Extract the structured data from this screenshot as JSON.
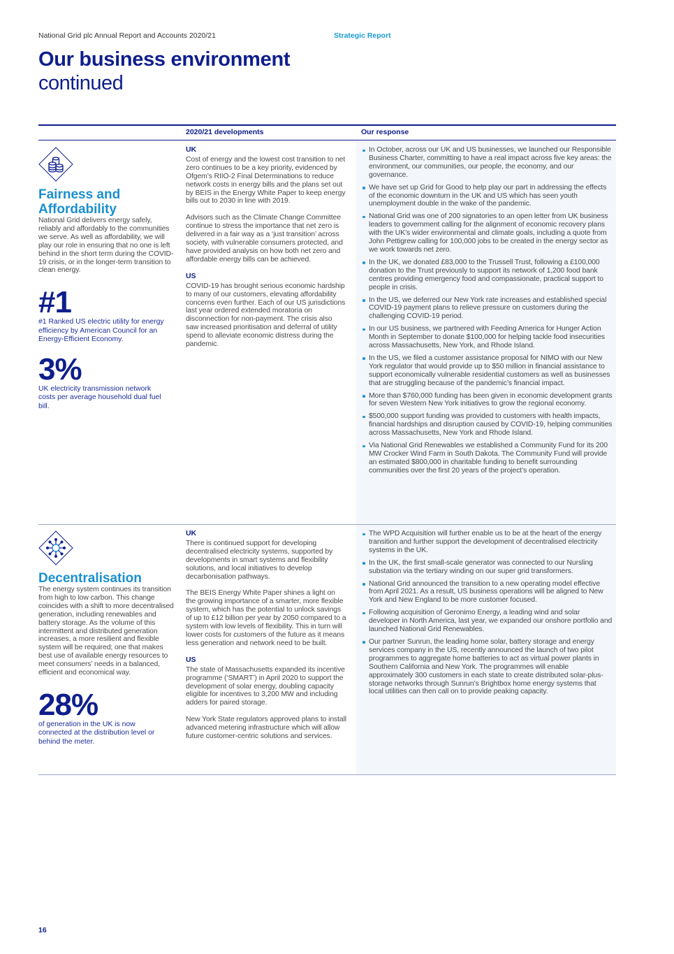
{
  "header": {
    "running_title": "National Grid plc Annual Report and Accounts 2020/21",
    "section": "Strategic Report",
    "title": "Our business environment",
    "subtitle": "continued"
  },
  "table": {
    "col_developments": "2020/21 developments",
    "col_response": "Our response",
    "rows": [
      {
        "icon": "coins-stack-icon",
        "theme": "Fairness and Affordability",
        "description": "National Grid delivers energy safely, reliably and affordably to the communities we serve. As well as affordability, we will play our role in ensuring that no one is left behind in the short term during the COVID-19 crisis, or in the longer-term transition to clean energy.",
        "stats": [
          {
            "value": "#1",
            "caption": "#1 Ranked US electric utility for energy efficiency by American Council for an Energy-Efficient Economy."
          },
          {
            "value": "3%",
            "caption": "UK electricity transmission network costs per average household dual fuel bill."
          }
        ],
        "uk_label": "UK",
        "uk": [
          "Cost of energy and the lowest cost transition to net zero continues to be a key priority, evidenced by Ofgem’s RIIO-2 Final Determinations to reduce network costs in energy bills and the plans set out by BEIS in the Energy White Paper to keep energy bills out to 2030 in line with 2019.",
          "Advisors such as the Climate Change Committee continue to stress the importance that net zero is delivered in a fair way as a ‘just transition’ across society, with vulnerable consumers protected, and have provided analysis on how both net zero and affordable energy bills can be achieved."
        ],
        "us_label": "US",
        "us": [
          "COVID-19 has brought serious economic hardship to many of our customers, elevating affordability concerns even further. Each of our US jurisdictions last year ordered extended moratoria on disconnection for non-payment. The crisis also saw increased prioritisation and deferral of utility spend to alleviate economic distress during the pandemic."
        ],
        "response": [
          "In October, across our UK and US businesses, we launched our Responsible Business Charter, committing to have a real impact across five key areas: the environment, our communities, our people, the economy, and our governance.",
          "We have set up Grid for Good to help play our part in addressing the effects of the economic downturn in the UK and US which has seen youth unemployment double in the wake of the pandemic.",
          "National Grid was one of 200 signatories to an open letter from UK business leaders to government calling for the alignment of economic recovery plans with the UK’s wider environmental and climate goals, including a quote from John Pettigrew calling for 100,000 jobs to be created in the energy sector as we work towards net zero.",
          "In the UK, we donated £83,000 to the Trussell Trust, following a £100,000 donation to the Trust previously to support its network of 1,200 food bank centres providing emergency food and compassionate, practical support to people in crisis.",
          "In the US, we deferred our New York rate increases and established special COVID-19 payment plans to relieve pressure on customers during the challenging COVID-19 period.",
          "In our US business, we partnered with Feeding America for Hunger Action Month in September to donate $100,000 for helping tackle food insecurities across Massachusetts, New York, and Rhode Island.",
          "In the US, we filed a customer assistance proposal for NIMO with our New York regulator that would provide up to $50 million in financial assistance to support economically vulnerable residential customers as well as businesses that are struggling because of the pandemic’s financial impact.",
          "More than $760,000 funding has been given in economic development grants for seven Western New York initiatives to grow the regional economy.",
          "$500,000 support funding was provided to customers with health impacts, financial hardships and disruption caused by COVID-19, helping communities across Massachusetts, New York and Rhode Island.",
          "Via National Grid Renewables we established a Community Fund for its 200 MW Crocker Wind Farm in South Dakota. The Community Fund will provide an estimated $800,000 in charitable funding to benefit surrounding communities over the first 20 years of the project’s operation."
        ]
      },
      {
        "icon": "network-nodes-icon",
        "theme": "Decentralisation",
        "description": "The energy system continues its transition from high to low carbon. This change coincides with a shift to more decentralised generation, including renewables and battery storage. As the volume of this intermittent and distributed generation increases, a more resilient and flexible system will be required; one that makes best use of available energy resources to meet consumers’ needs in a balanced, efficient and economical way.",
        "stats": [
          {
            "value": "28%",
            "caption": "of generation in the UK is now connected at the distribution level or behind the meter."
          }
        ],
        "uk_label": "UK",
        "uk": [
          "There is continued support for developing decentralised electricity systems, supported by developments in smart systems and flexibility solutions, and local initiatives to develop decarbonisation pathways.",
          "The BEIS Energy White Paper shines a light on the growing importance of a smarter, more flexible system, which has the potential to unlock savings of up to £12 billion per year by 2050 compared to a system with low levels of flexibility. This in turn will lower costs for customers of the future as it means less generation and network need to be built."
        ],
        "us_label": "US",
        "us": [
          "The state of Massachusetts expanded its incentive programme (‘SMART’) in April 2020 to support the development of solar energy, doubling capacity eligible for incentives to 3,200 MW and including adders for paired storage.",
          "New York State regulators approved plans to install advanced metering infrastructure which will allow future customer-centric solutions and services."
        ],
        "response": [
          "The WPD Acquisition will further enable us to be at the heart of the energy transition and further support the development of decentralised electricity systems in the UK.",
          "In the UK, the first small-scale generator was connected to our Nursling substation via the tertiary winding on our super grid transformers.",
          "National Grid announced the transition to a new operating model effective from April 2021. As a result, US business operations will be aligned to New York and New England to be more customer focused.",
          "Following acquisition of Geronimo Energy, a leading wind and solar developer in North America, last year, we expanded our onshore portfolio and launched National Grid Renewables.",
          "Our partner Sunrun, the leading home solar, battery storage and energy services company in the US, recently announced the launch of two pilot programmes to aggregate home batteries to act as virtual power plants in Southern California and New York. The programmes will enable approximately 300 customers in each state to create distributed solar-plus-storage networks through Sunrun’s Brightbox home energy systems that local utilities can then call on to provide peaking capacity."
        ]
      }
    ]
  },
  "footer": {
    "page_number": "16"
  },
  "colors": {
    "navy": "#0f1e8c",
    "accent_blue": "#1a8fd0",
    "response_bg": "#f3f6fa"
  }
}
